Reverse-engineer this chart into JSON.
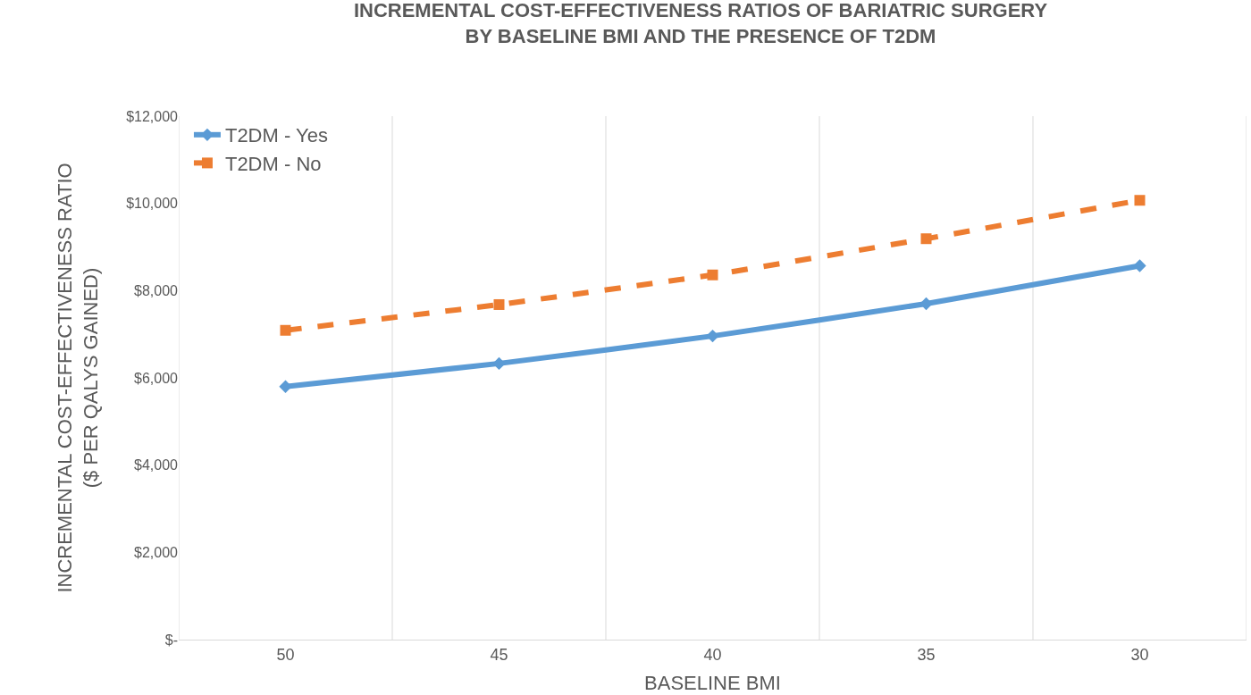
{
  "chart_data": {
    "type": "line",
    "title": "INCREMENTAL COST-EFFECTIVENESS RATIOS OF BARIATRIC SURGERY\nBY BASELINE BMI AND THE PRESENCE OF T2DM",
    "xlabel": "BASELINE BMI",
    "ylabel": "INCREMENTAL COST-EFFECTIVENESS RATIO\n($ PER QALYS GAINED)",
    "categories": [
      "50",
      "45",
      "40",
      "35",
      "30"
    ],
    "series": [
      {
        "name": "T2DM - Yes",
        "color": "#5b9bd5",
        "marker": "diamond",
        "line_style": "solid",
        "values": [
          5800,
          6330,
          6960,
          7700,
          8570
        ]
      },
      {
        "name": "T2DM - No",
        "color": "#ed7d31",
        "marker": "square",
        "line_style": "dashed",
        "values": [
          7090,
          7680,
          8360,
          9190,
          10070
        ]
      }
    ],
    "ylim": [
      0,
      12000
    ],
    "yticks": [
      {
        "value": 0,
        "label": "$-"
      },
      {
        "value": 2000,
        "label": "$2,000"
      },
      {
        "value": 4000,
        "label": "$4,000"
      },
      {
        "value": 6000,
        "label": "$6,000"
      },
      {
        "value": 8000,
        "label": "$8,000"
      },
      {
        "value": 10000,
        "label": "$10,000"
      },
      {
        "value": 12000,
        "label": "$12,000"
      }
    ],
    "grid": "x",
    "legend": "top left"
  }
}
